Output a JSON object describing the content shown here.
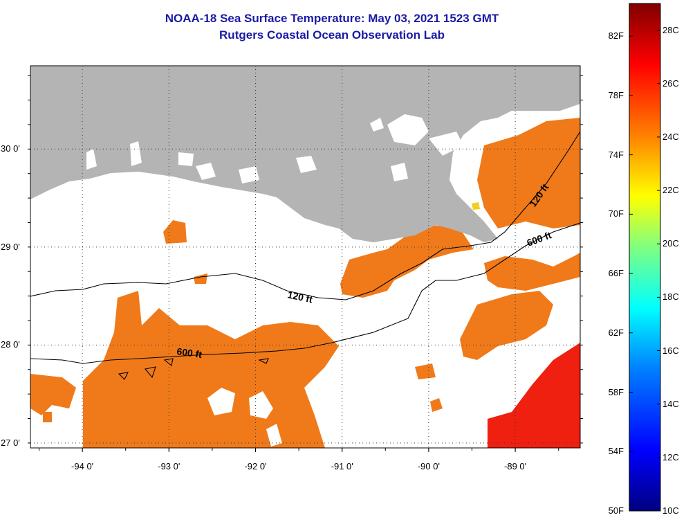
{
  "title": "NOAA-18 Sea Surface Temperature:  May 03, 2021 1523 GMT",
  "subtitle": "Rutgers Coastal Ocean Observation Lab",
  "map": {
    "lon_range": [
      -94.6,
      -88.25
    ],
    "lat_range": [
      26.95,
      30.85
    ],
    "lon_ticks": [
      {
        "value": -94,
        "label": "-94 0'"
      },
      {
        "value": -93,
        "label": "-93 0'"
      },
      {
        "value": -92,
        "label": "-92 0'"
      },
      {
        "value": -91,
        "label": "-91 0'"
      },
      {
        "value": -90,
        "label": "-90 0'"
      },
      {
        "value": -89,
        "label": "-89 0'"
      }
    ],
    "lat_ticks": [
      {
        "value": 30,
        "label": "30 0'"
      },
      {
        "value": 29,
        "label": "29 0'"
      },
      {
        "value": 28,
        "label": "28 0'"
      },
      {
        "value": 27,
        "label": "27 0'"
      }
    ],
    "land_color": "#b4b4b4",
    "isobaths": [
      {
        "name": "120-ft-isobath",
        "labels": [
          "120 ft",
          "120 ft"
        ]
      },
      {
        "name": "600-ft-isobath",
        "labels": [
          "600 ft",
          "600 ft"
        ]
      }
    ]
  },
  "colorbar": {
    "range_c": [
      10,
      29
    ],
    "fahrenheit_labels": [
      "82F",
      "78F",
      "74F",
      "70F",
      "66F",
      "62F",
      "58F",
      "54F",
      "50F"
    ],
    "celsius_labels": [
      "28C",
      "26C",
      "24C",
      "22C",
      "20C",
      "18C",
      "16C",
      "14C",
      "12C",
      "10C"
    ],
    "colors": [
      "#000080",
      "#0000ff",
      "#0080ff",
      "#00ffff",
      "#80ff80",
      "#ffff00",
      "#ff8000",
      "#ff0000",
      "#800000"
    ]
  }
}
